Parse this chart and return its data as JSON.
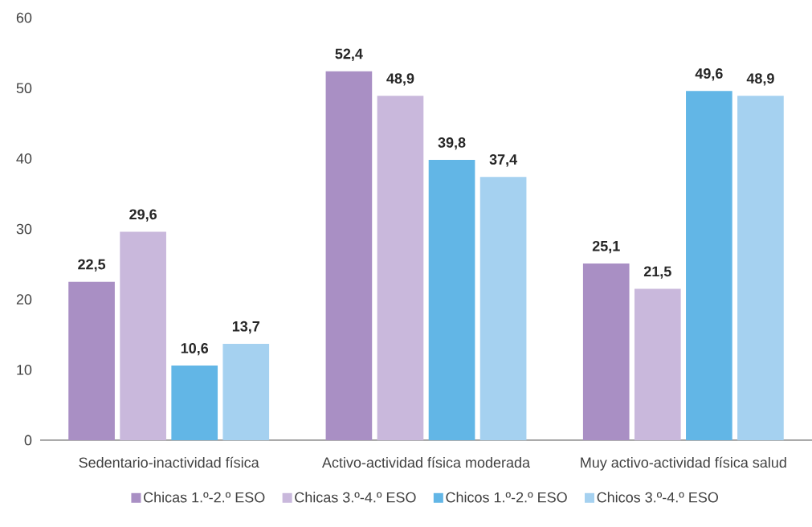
{
  "chart_data": {
    "type": "bar",
    "categories": [
      "Sedentario-inactividad física",
      "Activo-actividad física moderada",
      "Muy activo-actividad física salud"
    ],
    "series": [
      {
        "name": "Chicas 1.º-2.º ESO",
        "color": "#a98fc4",
        "values": [
          22.5,
          52.4,
          25.1
        ],
        "value_labels": [
          "22,5",
          "52,4",
          "25,1"
        ]
      },
      {
        "name": "Chicas 3.º-4.º ESO",
        "color": "#c9b8dc",
        "values": [
          29.6,
          48.9,
          21.5
        ],
        "value_labels": [
          "29,6",
          "48,9",
          "21,5"
        ]
      },
      {
        "name": "Chicos 1.º-2.º ESO",
        "color": "#62b6e6",
        "values": [
          10.6,
          39.8,
          49.6
        ],
        "value_labels": [
          "10,6",
          "39,8",
          "49,6"
        ]
      },
      {
        "name": "Chicos 3.º-4.º ESO",
        "color": "#a5d1f0",
        "values": [
          13.7,
          37.4,
          48.9
        ],
        "value_labels": [
          "13,7",
          "37,4",
          "48,9"
        ]
      }
    ],
    "ylim": [
      0,
      60
    ],
    "yticks": [
      0,
      10,
      20,
      30,
      40,
      50,
      60
    ],
    "grid": false,
    "legend": "bottom"
  }
}
